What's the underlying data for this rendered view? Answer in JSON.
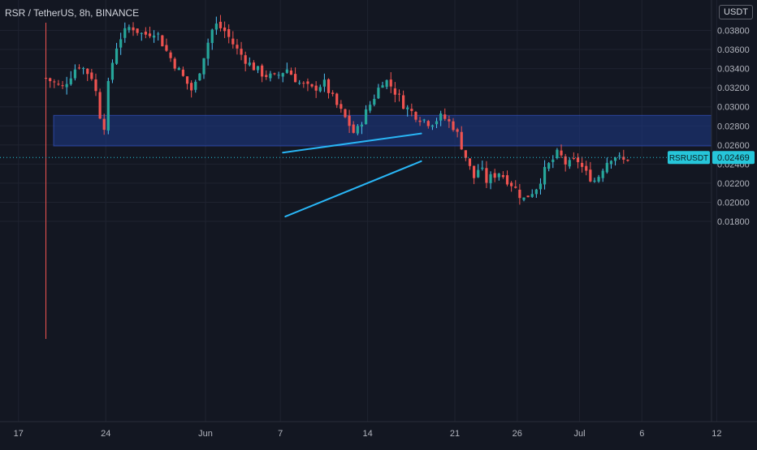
{
  "chart_data": {
    "type": "candlestick",
    "title": "RSR / TetherUS, 8h, BINANCE",
    "currency": "USDT",
    "current_price": {
      "symbol": "RSRUSDT",
      "value": "0.02469"
    },
    "y_ticks": [
      "0.03800",
      "0.03600",
      "0.03400",
      "0.03200",
      "0.03000",
      "0.02800",
      "0.02600",
      "0.02400",
      "0.02200",
      "0.02000",
      "0.01800"
    ],
    "x_ticks": [
      "17",
      "24",
      "Jun",
      "7",
      "14",
      "21",
      "26",
      "Jul",
      "6",
      "12"
    ],
    "ylim": [
      0.0172,
      0.0397
    ],
    "grid": true,
    "colors": {
      "up": "#26a69a",
      "down": "#ef5350",
      "wick_up": "#4fc3f7",
      "zone": "#1e3a8a",
      "trendline": "#29b6f6",
      "background": "#131722"
    },
    "support_zone": {
      "y_low": 0.0259,
      "y_high": 0.0291
    },
    "trendlines": [
      {
        "name": "upper-trendline",
        "points": [
          [
            21.2,
            0.0252
          ],
          [
            32.3,
            0.0272
          ]
        ]
      },
      {
        "name": "lower-trendline",
        "points": [
          [
            21.4,
            0.0185
          ],
          [
            32.3,
            0.0243
          ]
        ]
      }
    ]
  }
}
